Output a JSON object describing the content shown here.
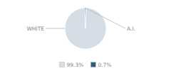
{
  "chart_data": {
    "type": "pie",
    "categories": [
      "WHITE",
      "A.I."
    ],
    "values": [
      99.3,
      0.7
    ],
    "value_labels": [
      "99.3%",
      "0.7%"
    ],
    "colors": [
      "#d5dde7",
      "#2e5f7a"
    ],
    "legend": "bottom"
  }
}
